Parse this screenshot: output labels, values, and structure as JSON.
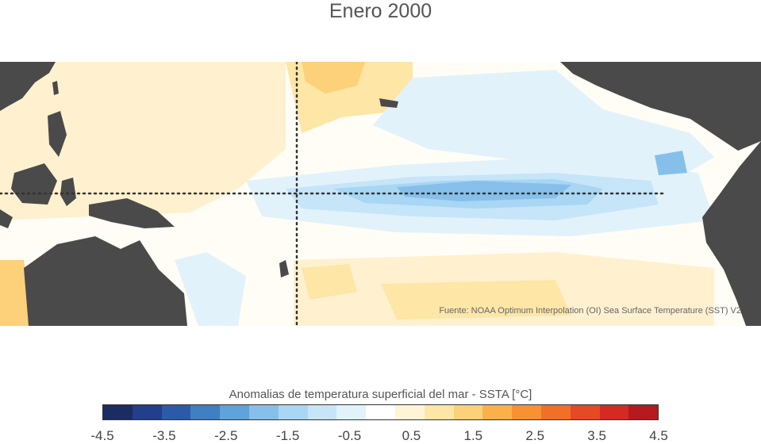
{
  "title": "Enero 2000",
  "source": "Fuente: NOAA Optimum Interpolation (OI) Sea Surface Temperature (SST) V2",
  "colorbar": {
    "label": "Anomalias de temperatura superficial del mar - SSTA  [°C]",
    "colors": [
      "#1b2b63",
      "#213f8a",
      "#2b5ba8",
      "#3f7fc2",
      "#5ea3da",
      "#86c0ea",
      "#a8d6f3",
      "#c6e5f8",
      "#e2f2fb",
      "#ffffff",
      "#fff4d6",
      "#fde6a6",
      "#fcd179",
      "#fbb14a",
      "#f99132",
      "#f26f28",
      "#e44a25",
      "#d32a24",
      "#b51a1f"
    ],
    "tick_labels": [
      "-4.5",
      "-3.5",
      "-2.5",
      "-1.5",
      "-0.5",
      "0.5",
      "1.5",
      "2.5",
      "3.5",
      "4.5"
    ]
  }
}
